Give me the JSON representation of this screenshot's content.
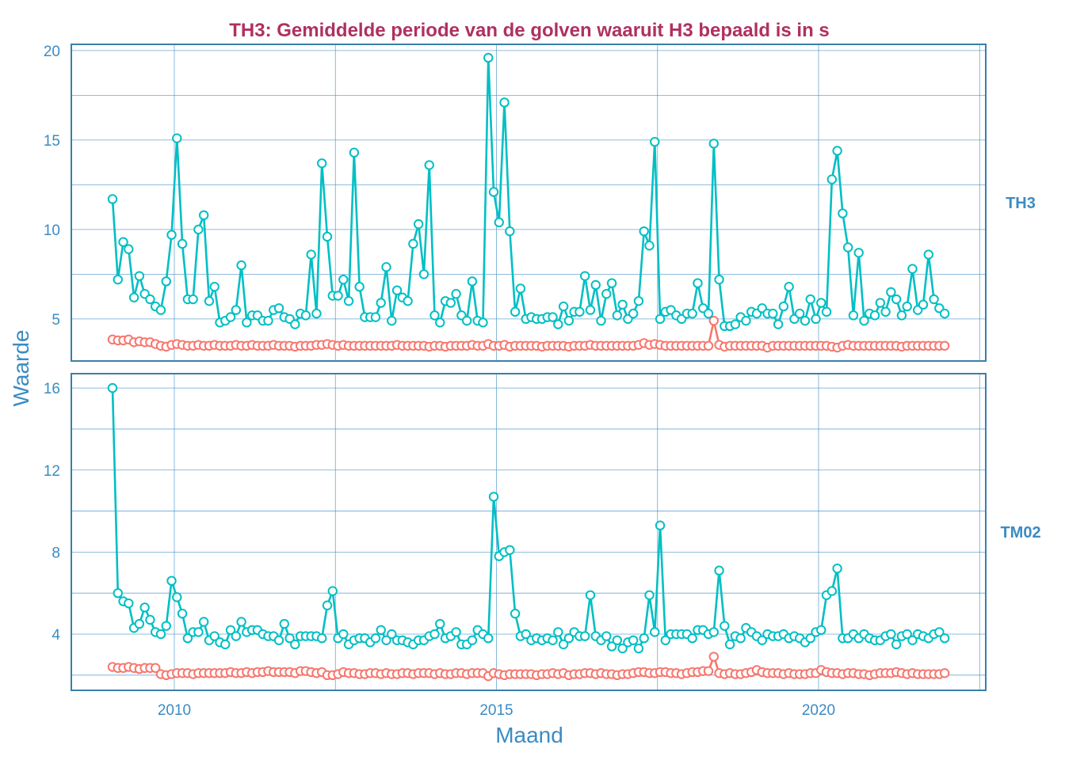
{
  "chart_data": {
    "type": "line",
    "title": "TH3: Gemiddelde periode van de golven waaruit H3 bepaald is in s",
    "xlabel": "Maand",
    "ylabel": "Waarde",
    "x_tick_labels": [
      "2010",
      "2015",
      "2020"
    ],
    "x_start": "2009-01",
    "x_end": "2021-12",
    "x_frequency": "monthly",
    "grid": true,
    "legend": "none",
    "colors": {
      "series_cyan": "#00BFC4",
      "series_red": "#F8766D",
      "text": "#3A8CC4",
      "title": "#B03060",
      "grid": "#3A8CC4"
    },
    "panels": [
      {
        "strip_label": "TH3",
        "ylim": [
          2.65,
          20.35
        ],
        "y_ticks": [
          5,
          10,
          15,
          20
        ],
        "series": [
          {
            "name": "cyan",
            "color": "#00BFC4",
            "values": [
              11.7,
              7.2,
              9.3,
              8.9,
              6.2,
              7.4,
              6.4,
              6.1,
              5.7,
              5.5,
              7.1,
              9.7,
              15.1,
              9.2,
              6.1,
              6.1,
              10.0,
              10.8,
              6.0,
              6.8,
              4.8,
              4.9,
              5.1,
              5.5,
              8.0,
              4.8,
              5.2,
              5.2,
              4.9,
              4.9,
              5.5,
              5.6,
              5.1,
              5.0,
              4.7,
              5.3,
              5.2,
              8.6,
              5.3,
              13.7,
              9.6,
              6.3,
              6.3,
              7.2,
              6.0,
              14.3,
              6.8,
              5.1,
              5.1,
              5.1,
              5.9,
              7.9,
              4.9,
              6.6,
              6.2,
              6.0,
              9.2,
              10.3,
              7.5,
              13.6,
              5.2,
              4.8,
              6.0,
              5.9,
              6.4,
              5.2,
              4.9,
              7.1,
              4.9,
              4.8,
              19.6,
              12.1,
              10.4,
              17.1,
              9.9,
              5.4,
              6.7,
              5.0,
              5.1,
              5.0,
              5.0,
              5.1,
              5.1,
              4.7,
              5.7,
              4.9,
              5.4,
              5.4,
              7.4,
              5.5,
              6.9,
              4.9,
              6.4,
              7.0,
              5.2,
              5.8,
              5.0,
              5.3,
              6.0,
              9.9,
              9.1,
              14.9,
              5.0,
              5.4,
              5.5,
              5.2,
              5.0,
              5.3,
              5.3,
              7.0,
              5.6,
              5.3,
              14.8,
              7.2,
              4.6,
              4.6,
              4.7,
              5.1,
              4.9,
              5.4,
              5.3,
              5.6,
              5.3,
              5.3,
              4.7,
              5.7,
              6.8,
              5.0,
              5.3,
              4.9,
              6.1,
              5.0,
              5.9,
              5.4,
              12.8,
              14.4,
              10.9,
              9.0,
              5.2,
              8.7,
              4.9,
              5.3,
              5.2,
              5.9,
              5.4,
              6.5,
              6.1,
              5.2,
              5.7,
              7.8,
              5.5,
              5.8,
              8.6,
              6.1,
              5.6,
              5.3
            ]
          },
          {
            "name": "red",
            "color": "#F8766D",
            "values": [
              3.85,
              3.8,
              3.8,
              3.85,
              3.7,
              3.75,
              3.7,
              3.7,
              3.6,
              3.5,
              3.45,
              3.55,
              3.6,
              3.55,
              3.5,
              3.5,
              3.55,
              3.5,
              3.5,
              3.55,
              3.5,
              3.5,
              3.5,
              3.55,
              3.5,
              3.5,
              3.55,
              3.5,
              3.5,
              3.5,
              3.55,
              3.5,
              3.5,
              3.5,
              3.45,
              3.5,
              3.5,
              3.5,
              3.55,
              3.55,
              3.6,
              3.55,
              3.5,
              3.55,
              3.5,
              3.5,
              3.5,
              3.5,
              3.5,
              3.5,
              3.5,
              3.5,
              3.5,
              3.55,
              3.5,
              3.5,
              3.5,
              3.5,
              3.5,
              3.45,
              3.5,
              3.5,
              3.45,
              3.5,
              3.5,
              3.5,
              3.5,
              3.55,
              3.5,
              3.5,
              3.6,
              3.5,
              3.5,
              3.55,
              3.45,
              3.5,
              3.5,
              3.5,
              3.5,
              3.5,
              3.45,
              3.5,
              3.5,
              3.5,
              3.5,
              3.45,
              3.5,
              3.5,
              3.5,
              3.55,
              3.5,
              3.5,
              3.5,
              3.5,
              3.5,
              3.5,
              3.5,
              3.5,
              3.55,
              3.65,
              3.55,
              3.6,
              3.55,
              3.5,
              3.5,
              3.5,
              3.5,
              3.5,
              3.5,
              3.5,
              3.5,
              3.5,
              4.9,
              3.55,
              3.45,
              3.5,
              3.5,
              3.5,
              3.5,
              3.5,
              3.5,
              3.5,
              3.4,
              3.5,
              3.5,
              3.5,
              3.5,
              3.5,
              3.5,
              3.5,
              3.5,
              3.5,
              3.5,
              3.5,
              3.45,
              3.4,
              3.5,
              3.55,
              3.5,
              3.5,
              3.5,
              3.5,
              3.5,
              3.5,
              3.5,
              3.5,
              3.5,
              3.45,
              3.5,
              3.5,
              3.5,
              3.5,
              3.5,
              3.5,
              3.5,
              3.5
            ]
          }
        ]
      },
      {
        "strip_label": "TM02",
        "ylim": [
          1.26,
          16.7
        ],
        "y_ticks": [
          4,
          8,
          12,
          16
        ],
        "series": [
          {
            "name": "cyan",
            "color": "#00BFC4",
            "values": [
              16.0,
              6.0,
              5.6,
              5.5,
              4.3,
              4.5,
              5.3,
              4.7,
              4.1,
              4.0,
              4.4,
              6.6,
              5.8,
              5.0,
              3.8,
              4.1,
              4.1,
              4.6,
              3.7,
              3.9,
              3.6,
              3.5,
              4.2,
              3.9,
              4.6,
              4.1,
              4.2,
              4.2,
              4.0,
              3.9,
              3.9,
              3.7,
              4.5,
              3.8,
              3.5,
              3.9,
              3.9,
              3.9,
              3.9,
              3.8,
              5.4,
              6.1,
              3.8,
              4.0,
              3.5,
              3.7,
              3.8,
              3.8,
              3.6,
              3.8,
              4.2,
              3.7,
              4.0,
              3.7,
              3.7,
              3.6,
              3.5,
              3.7,
              3.7,
              3.9,
              4.0,
              4.5,
              3.8,
              3.9,
              4.1,
              3.5,
              3.5,
              3.7,
              4.2,
              4.0,
              3.8,
              10.7,
              7.8,
              8.0,
              8.1,
              5.0,
              3.9,
              4.0,
              3.7,
              3.8,
              3.7,
              3.8,
              3.7,
              4.1,
              3.5,
              3.8,
              4.1,
              3.9,
              3.9,
              5.9,
              3.9,
              3.7,
              3.9,
              3.4,
              3.7,
              3.3,
              3.6,
              3.7,
              3.3,
              3.8,
              5.9,
              4.1,
              9.3,
              3.7,
              4.0,
              4.0,
              4.0,
              4.0,
              3.8,
              4.2,
              4.2,
              4.0,
              4.1,
              7.1,
              4.4,
              3.5,
              3.9,
              3.8,
              4.3,
              4.1,
              3.9,
              3.7,
              4.0,
              3.9,
              3.9,
              4.0,
              3.8,
              3.9,
              3.8,
              3.6,
              3.8,
              4.1,
              4.2,
              5.9,
              6.1,
              7.2,
              3.8,
              3.8,
              4.0,
              3.8,
              4.0,
              3.8,
              3.7,
              3.7,
              3.9,
              4.0,
              3.5,
              3.9,
              4.0,
              3.7,
              4.0,
              3.9,
              3.8,
              4.0,
              4.1,
              3.8
            ]
          },
          {
            "name": "red",
            "color": "#F8766D",
            "values": [
              2.4,
              2.35,
              2.35,
              2.4,
              2.35,
              2.3,
              2.35,
              2.35,
              2.35,
              2.05,
              2.0,
              2.05,
              2.1,
              2.1,
              2.1,
              2.05,
              2.1,
              2.1,
              2.1,
              2.1,
              2.1,
              2.1,
              2.15,
              2.1,
              2.1,
              2.15,
              2.1,
              2.15,
              2.15,
              2.2,
              2.15,
              2.15,
              2.15,
              2.15,
              2.1,
              2.2,
              2.2,
              2.15,
              2.1,
              2.15,
              2.0,
              2.0,
              2.05,
              2.15,
              2.1,
              2.1,
              2.05,
              2.05,
              2.1,
              2.1,
              2.05,
              2.1,
              2.05,
              2.05,
              2.1,
              2.1,
              2.05,
              2.1,
              2.1,
              2.1,
              2.05,
              2.1,
              2.05,
              2.05,
              2.1,
              2.1,
              2.05,
              2.1,
              2.1,
              2.1,
              1.95,
              2.1,
              2.05,
              2.0,
              2.05,
              2.05,
              2.05,
              2.05,
              2.05,
              2.0,
              2.05,
              2.05,
              2.1,
              2.05,
              2.1,
              2.0,
              2.05,
              2.05,
              2.1,
              2.1,
              2.05,
              2.1,
              2.05,
              2.05,
              2.0,
              2.05,
              2.05,
              2.1,
              2.15,
              2.15,
              2.1,
              2.1,
              2.15,
              2.15,
              2.1,
              2.1,
              2.05,
              2.1,
              2.15,
              2.15,
              2.2,
              2.2,
              2.9,
              2.1,
              2.05,
              2.1,
              2.05,
              2.05,
              2.1,
              2.15,
              2.25,
              2.15,
              2.1,
              2.1,
              2.1,
              2.05,
              2.1,
              2.05,
              2.05,
              2.05,
              2.1,
              2.1,
              2.25,
              2.15,
              2.1,
              2.1,
              2.05,
              2.1,
              2.1,
              2.05,
              2.05,
              2.0,
              2.05,
              2.1,
              2.1,
              2.1,
              2.15,
              2.1,
              2.05,
              2.1,
              2.05,
              2.05,
              2.05,
              2.05,
              2.05,
              2.1
            ]
          }
        ]
      }
    ]
  }
}
